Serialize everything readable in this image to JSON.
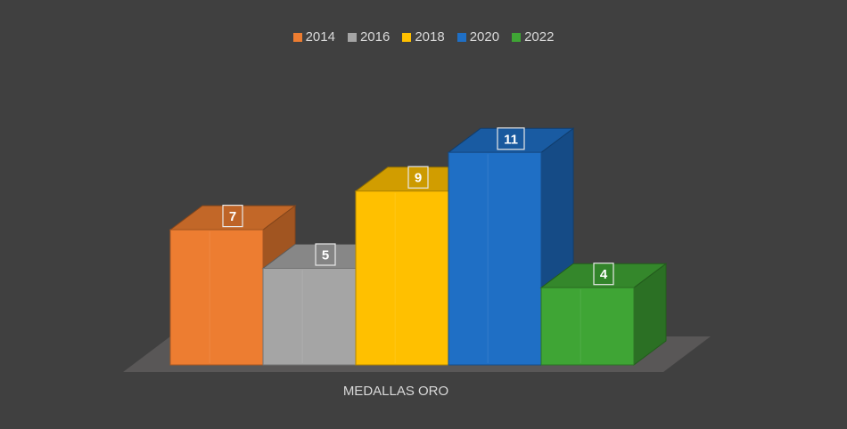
{
  "chart_data": {
    "type": "bar",
    "categories": [
      "MEDALLAS ORO"
    ],
    "series": [
      {
        "name": "2014",
        "values": [
          7
        ],
        "color": "#ED7D31"
      },
      {
        "name": "2016",
        "values": [
          5
        ],
        "color": "#A5A5A5"
      },
      {
        "name": "2018",
        "values": [
          9
        ],
        "color": "#FFC000"
      },
      {
        "name": "2020",
        "values": [
          11
        ],
        "color": "#1F6FC5"
      },
      {
        "name": "2022",
        "values": [
          4
        ],
        "color": "#3FA535"
      }
    ],
    "title": "",
    "xlabel": "",
    "ylabel": "",
    "ylim": [
      0,
      12
    ],
    "grid": false,
    "legend_position": "top",
    "style": "3d-column",
    "data_labels": true
  }
}
